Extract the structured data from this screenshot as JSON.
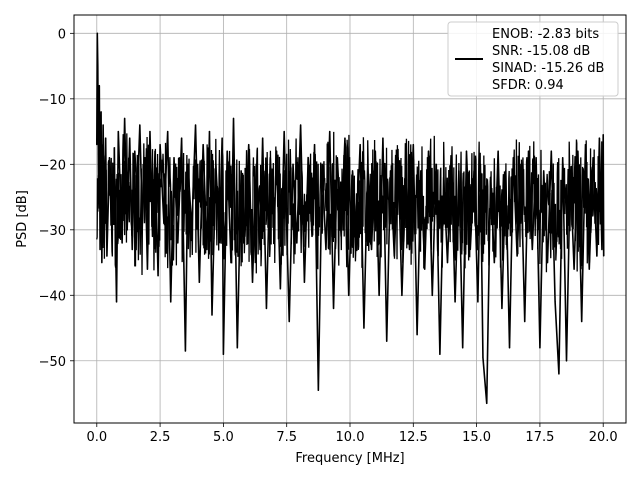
{
  "chart_data": {
    "type": "line",
    "title": "",
    "xlabel": "Frequency [MHz]",
    "ylabel": "PSD [dB]",
    "xlim": [
      -0.9,
      20.9
    ],
    "ylim": [
      -59.5,
      2.8
    ],
    "xticks": [
      0.0,
      2.5,
      5.0,
      7.5,
      10.0,
      12.5,
      15.0,
      17.5,
      20.0
    ],
    "xtick_labels": [
      "0.0",
      "2.5",
      "5.0",
      "7.5",
      "10.0",
      "12.5",
      "15.0",
      "17.5",
      "20.0"
    ],
    "yticks": [
      0,
      -10,
      -20,
      -30,
      -40,
      -50
    ],
    "ytick_labels": [
      "0",
      "−10",
      "−20",
      "−30",
      "−40",
      "−50"
    ],
    "grid": true,
    "legend_placement": "top-right",
    "legend": [
      "ENOB: -2.83 bits",
      "SNR: -15.08 dB",
      "SINAD: -15.26 dB",
      "SFDR: 0.94"
    ],
    "series": [
      {
        "name": "ENOB: -2.83 bits",
        "color": "#000000",
        "points": [
          [
            0.0,
            -17
          ],
          [
            0.02,
            0.0
          ],
          [
            0.04,
            -5
          ],
          [
            0.07,
            -25
          ],
          [
            0.1,
            -8
          ],
          [
            0.13,
            -33
          ],
          [
            0.17,
            -12
          ],
          [
            0.2,
            -35
          ],
          [
            0.25,
            -14
          ],
          [
            0.3,
            -30
          ],
          [
            0.35,
            -16
          ],
          [
            0.4,
            -34
          ],
          [
            0.5,
            -19
          ],
          [
            0.6,
            -28
          ],
          [
            0.7,
            -23
          ],
          [
            0.78,
            -41
          ],
          [
            0.85,
            -15
          ],
          [
            1.0,
            -32
          ],
          [
            1.1,
            -13
          ],
          [
            1.2,
            -30
          ],
          [
            1.3,
            -16
          ],
          [
            1.4,
            -33
          ],
          [
            1.5,
            -18
          ],
          [
            1.6,
            -25
          ],
          [
            1.7,
            -14
          ],
          [
            1.8,
            -29
          ],
          [
            1.9,
            -19
          ],
          [
            2.0,
            -36
          ],
          [
            2.1,
            -15
          ],
          [
            2.2,
            -31
          ],
          [
            2.3,
            -18
          ],
          [
            2.42,
            -37
          ],
          [
            2.5,
            -17
          ],
          [
            2.65,
            -29
          ],
          [
            2.8,
            -15
          ],
          [
            2.92,
            -41
          ],
          [
            3.05,
            -19
          ],
          [
            3.2,
            -32
          ],
          [
            3.35,
            -16
          ],
          [
            3.5,
            -48.5
          ],
          [
            3.6,
            -20
          ],
          [
            3.75,
            -30
          ],
          [
            3.9,
            -14
          ],
          [
            4.05,
            -38
          ],
          [
            4.2,
            -17
          ],
          [
            4.35,
            -33
          ],
          [
            4.45,
            -15
          ],
          [
            4.55,
            -43
          ],
          [
            4.7,
            -20
          ],
          [
            4.85,
            -31
          ],
          [
            4.95,
            -16
          ],
          [
            5.0,
            -49
          ],
          [
            5.15,
            -18
          ],
          [
            5.3,
            -35
          ],
          [
            5.4,
            -13
          ],
          [
            5.55,
            -48
          ],
          [
            5.7,
            -21
          ],
          [
            5.85,
            -31
          ],
          [
            6.0,
            -17
          ],
          [
            6.15,
            -38
          ],
          [
            6.3,
            -20
          ],
          [
            6.45,
            -33
          ],
          [
            6.55,
            -16
          ],
          [
            6.7,
            -42
          ],
          [
            6.85,
            -19
          ],
          [
            7.0,
            -30
          ],
          [
            7.1,
            -18
          ],
          [
            7.25,
            -39
          ],
          [
            7.4,
            -15
          ],
          [
            7.6,
            -44
          ],
          [
            7.75,
            -20
          ],
          [
            7.9,
            -32
          ],
          [
            8.05,
            -14
          ],
          [
            8.2,
            -38
          ],
          [
            8.35,
            -19
          ],
          [
            8.5,
            -31
          ],
          [
            8.6,
            -17
          ],
          [
            8.75,
            -54.5
          ],
          [
            8.9,
            -20
          ],
          [
            9.05,
            -33
          ],
          [
            9.2,
            -15
          ],
          [
            9.35,
            -42
          ],
          [
            9.5,
            -19
          ],
          [
            9.65,
            -31
          ],
          [
            9.8,
            -16
          ],
          [
            9.95,
            -40
          ],
          [
            10.1,
            -21
          ],
          [
            10.25,
            -32
          ],
          [
            10.4,
            -17
          ],
          [
            10.55,
            -45
          ],
          [
            10.7,
            -20
          ],
          [
            10.85,
            -33
          ],
          [
            11.0,
            -18
          ],
          [
            11.15,
            -40
          ],
          [
            11.3,
            -16
          ],
          [
            11.45,
            -47
          ],
          [
            11.6,
            -21
          ],
          [
            11.75,
            -34
          ],
          [
            11.9,
            -19
          ],
          [
            12.05,
            -40
          ],
          [
            12.2,
            -22
          ],
          [
            12.35,
            -33
          ],
          [
            12.5,
            -17
          ],
          [
            12.65,
            -46
          ],
          [
            12.8,
            -21
          ],
          [
            12.95,
            -36
          ],
          [
            13.1,
            -18
          ],
          [
            13.25,
            -40
          ],
          [
            13.4,
            -20
          ],
          [
            13.55,
            -49
          ],
          [
            13.7,
            -22
          ],
          [
            13.85,
            -35
          ],
          [
            14.0,
            -19
          ],
          [
            14.15,
            -41
          ],
          [
            14.3,
            -21
          ],
          [
            14.45,
            -48
          ],
          [
            14.6,
            -18
          ],
          [
            14.75,
            -33
          ],
          [
            14.9,
            -21
          ],
          [
            15.05,
            -41
          ],
          [
            15.15,
            -20
          ],
          [
            15.25,
            -49.5
          ],
          [
            15.4,
            -56.5
          ],
          [
            15.55,
            -22
          ],
          [
            15.7,
            -35
          ],
          [
            15.85,
            -18
          ],
          [
            16.0,
            -42
          ],
          [
            16.15,
            -21
          ],
          [
            16.3,
            -48
          ],
          [
            16.45,
            -19
          ],
          [
            16.6,
            -34
          ],
          [
            16.75,
            -20
          ],
          [
            16.9,
            -44
          ],
          [
            17.05,
            -18
          ],
          [
            17.2,
            -33
          ],
          [
            17.35,
            -19
          ],
          [
            17.5,
            -48
          ],
          [
            17.65,
            -21
          ],
          [
            17.8,
            -35
          ],
          [
            17.95,
            -18
          ],
          [
            18.1,
            -41
          ],
          [
            18.25,
            -52
          ],
          [
            18.4,
            -19
          ],
          [
            18.55,
            -50
          ],
          [
            18.7,
            -21
          ],
          [
            18.85,
            -36
          ],
          [
            19.0,
            -18
          ],
          [
            19.15,
            -44
          ],
          [
            19.3,
            -17
          ],
          [
            19.45,
            -36
          ],
          [
            19.6,
            -19
          ],
          [
            19.75,
            -34
          ],
          [
            19.85,
            -16
          ],
          [
            19.95,
            -33
          ],
          [
            20.0,
            -15.5
          ],
          [
            20.02,
            -34
          ]
        ]
      }
    ],
    "noise_band": {
      "x_range": [
        0.0,
        20.0
      ],
      "mean_db": -26,
      "spread_db": 8,
      "seed": 7
    }
  }
}
